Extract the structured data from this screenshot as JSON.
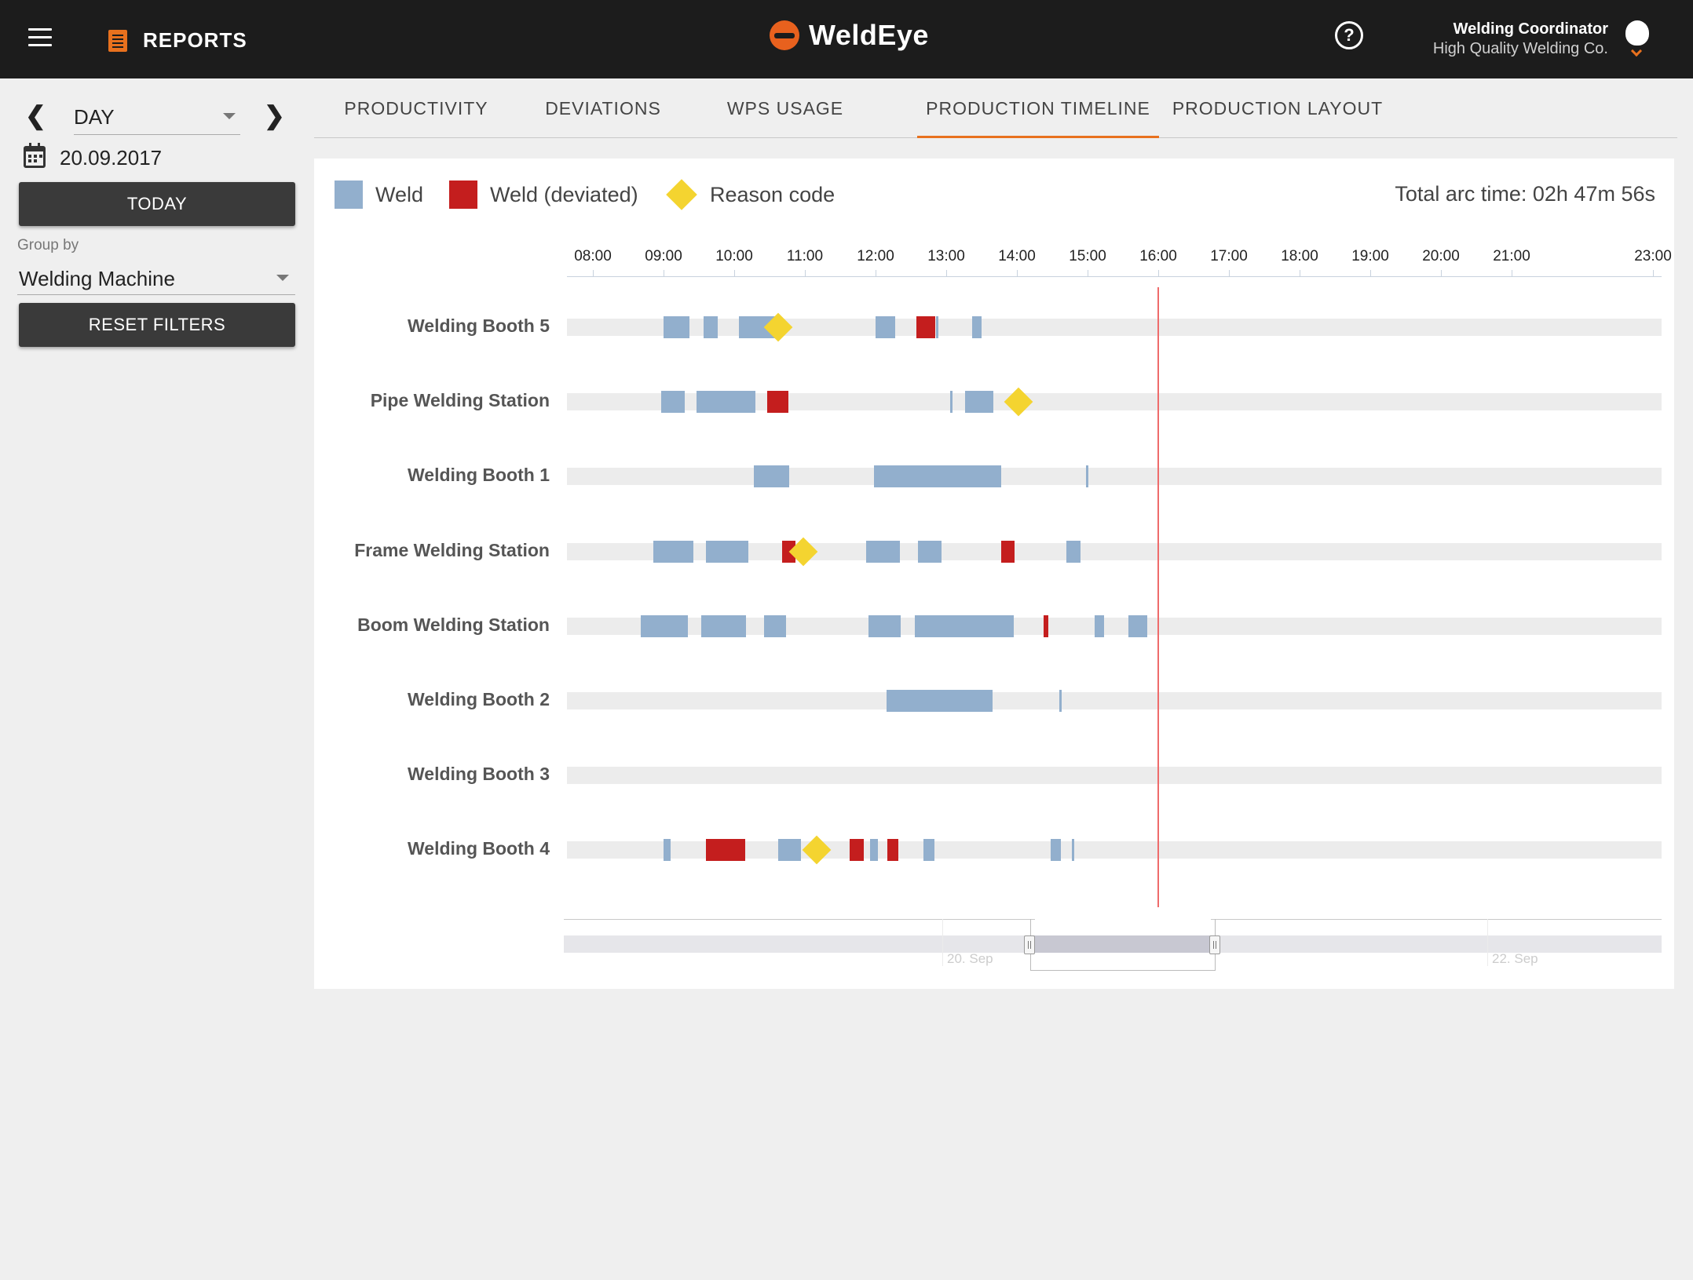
{
  "header": {
    "section_label": "REPORTS",
    "brand": "WeldEye",
    "help_glyph": "?",
    "user_role": "Welding Coordinator",
    "user_company": "High Quality Welding Co."
  },
  "filters": {
    "prev_glyph": "❮",
    "next_glyph": "❯",
    "period": "DAY",
    "date": "20.09.2017",
    "today_label": "TODAY",
    "group_by_label": "Group by",
    "group_by_value": "Welding Machine",
    "reset_label": "RESET FILTERS"
  },
  "tabs": [
    {
      "label": "PRODUCTIVITY",
      "active": false
    },
    {
      "label": "DEVIATIONS",
      "active": false
    },
    {
      "label": "WPS USAGE",
      "active": false
    },
    {
      "label": "PRODUCTION TIMELINE",
      "active": true
    },
    {
      "label": "PRODUCTION LAYOUT",
      "active": false
    }
  ],
  "legend": {
    "weld": "Weld",
    "deviated": "Weld (deviated)",
    "reason": "Reason code"
  },
  "total_arc_time": "Total arc time: 02h 47m 56s",
  "colors": {
    "accent": "#e8711e",
    "weld": "#92afcd",
    "deviated": "#c41e1e",
    "reason": "#f4d430",
    "now_line": "#ef6b6b"
  },
  "chart_data": {
    "type": "timeline",
    "x_ticks": [
      "08:00",
      "09:00",
      "10:00",
      "11:00",
      "12:00",
      "13:00",
      "14:00",
      "15:00",
      "16:00",
      "17:00",
      "18:00",
      "19:00",
      "20:00",
      "21:00",
      "23:00"
    ],
    "current_time": "16:00",
    "rows": [
      {
        "name": "Welding Booth 5",
        "welds": [
          [
            9.0,
            9.37
          ],
          [
            9.57,
            9.77
          ],
          [
            10.07,
            10.6
          ],
          [
            12.0,
            12.28
          ],
          [
            12.86,
            12.88
          ],
          [
            13.37,
            13.5
          ]
        ],
        "deviated": [
          [
            12.58,
            12.85
          ]
        ],
        "reasons": [
          10.62
        ]
      },
      {
        "name": "Pipe Welding Station",
        "welds": [
          [
            8.97,
            9.3
          ],
          [
            9.47,
            10.3
          ],
          [
            13.05,
            13.08
          ],
          [
            13.27,
            13.67
          ]
        ],
        "deviated": [
          [
            10.47,
            10.77
          ]
        ],
        "reasons": [
          14.02
        ]
      },
      {
        "name": "Welding Booth 1",
        "welds": [
          [
            10.28,
            10.78
          ],
          [
            11.98,
            13.78
          ],
          [
            14.98,
            15.0
          ]
        ],
        "deviated": [],
        "reasons": []
      },
      {
        "name": "Frame Welding Station",
        "welds": [
          [
            8.85,
            9.42
          ],
          [
            9.6,
            10.2
          ],
          [
            11.87,
            12.35
          ],
          [
            12.6,
            12.93
          ],
          [
            14.7,
            14.9
          ]
        ],
        "deviated": [
          [
            10.68,
            10.87
          ],
          [
            13.78,
            13.97
          ]
        ],
        "reasons": [
          10.98
        ]
      },
      {
        "name": "Boom Welding Station",
        "welds": [
          [
            8.68,
            9.35
          ],
          [
            9.53,
            10.17
          ],
          [
            10.42,
            10.73
          ],
          [
            11.9,
            12.35
          ],
          [
            12.55,
            13.95
          ],
          [
            15.1,
            15.23
          ],
          [
            15.58,
            15.85
          ]
        ],
        "deviated": [
          [
            14.38,
            14.45
          ]
        ],
        "reasons": []
      },
      {
        "name": "Welding Booth 2",
        "welds": [
          [
            12.15,
            13.65
          ],
          [
            14.6,
            14.63
          ]
        ],
        "deviated": [],
        "reasons": []
      },
      {
        "name": "Welding Booth 3",
        "welds": [],
        "deviated": [],
        "reasons": []
      },
      {
        "name": "Welding Booth 4",
        "welds": [
          [
            9.0,
            9.1
          ],
          [
            10.62,
            10.95
          ],
          [
            11.92,
            12.03
          ],
          [
            12.68,
            12.83
          ],
          [
            14.48,
            14.62
          ],
          [
            14.78,
            14.8
          ]
        ],
        "deviated": [
          [
            9.6,
            10.15
          ],
          [
            11.63,
            11.83
          ],
          [
            12.17,
            12.32
          ]
        ],
        "reasons": [
          11.17
        ]
      }
    ]
  },
  "navigator": {
    "dates": [
      "20. Sep",
      "22. Sep"
    ]
  }
}
